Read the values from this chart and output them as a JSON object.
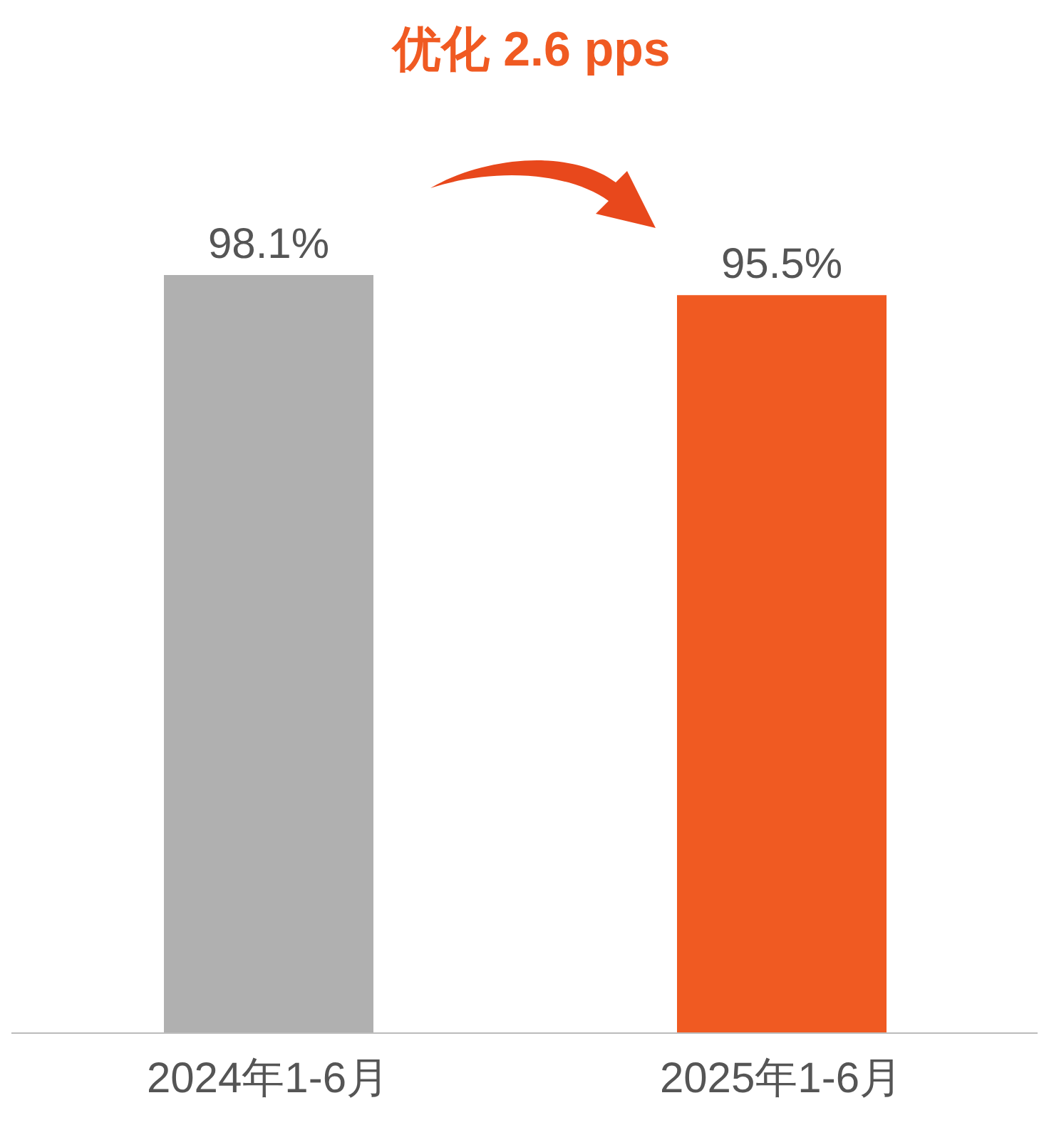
{
  "chart_data": {
    "type": "bar",
    "title": "优化 2.6 pps",
    "categories": [
      "2024年1-6月",
      "2025年1-6月"
    ],
    "values": [
      98.1,
      95.5
    ],
    "colors": [
      "#b0b0b0",
      "#f05a22"
    ],
    "data_labels": true,
    "value_labels": [
      "98.1%",
      "95.5%"
    ]
  }
}
